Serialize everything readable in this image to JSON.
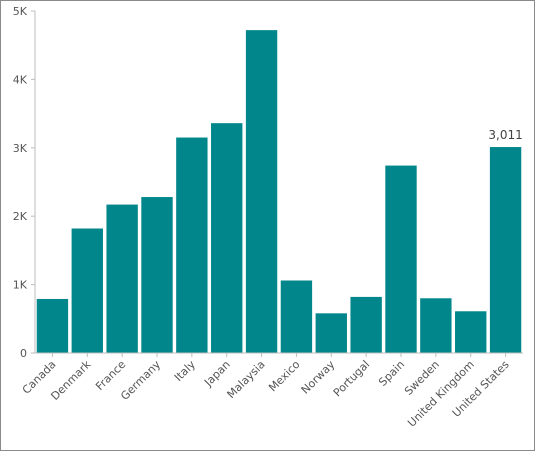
{
  "chart_data": {
    "type": "bar",
    "categories": [
      "Canada",
      "Denmark",
      "France",
      "Germany",
      "Italy",
      "Japan",
      "Malaysia",
      "Mexico",
      "Norway",
      "Portugal",
      "Spain",
      "Sweden",
      "United Kingdom",
      "United States"
    ],
    "values": [
      790,
      1820,
      2170,
      2280,
      3150,
      3360,
      4720,
      1060,
      580,
      820,
      2740,
      800,
      610,
      3011
    ],
    "ylim": [
      0,
      5000
    ],
    "yticks": [
      {
        "value": 0,
        "label": "0"
      },
      {
        "value": 1000,
        "label": "1K"
      },
      {
        "value": 2000,
        "label": "2K"
      },
      {
        "value": 3000,
        "label": "3K"
      },
      {
        "value": 4000,
        "label": "4K"
      },
      {
        "value": 5000,
        "label": "5K"
      }
    ],
    "data_labels": [
      {
        "category": "United States",
        "label": "3,011"
      }
    ],
    "bar_color": "#00868b",
    "grid": false,
    "legend": "none"
  }
}
